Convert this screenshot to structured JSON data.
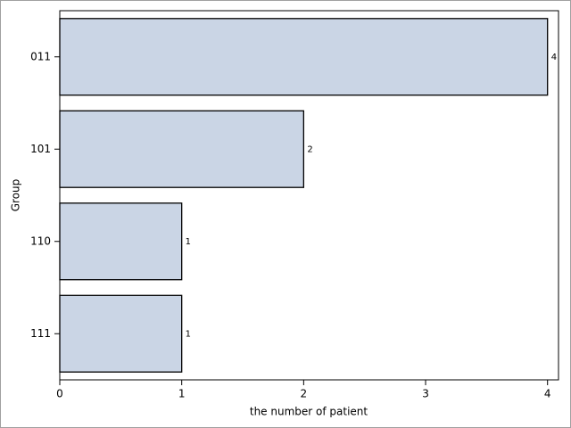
{
  "chart_data": {
    "type": "bar",
    "orientation": "horizontal",
    "categories": [
      "011",
      "101",
      "110",
      "111"
    ],
    "values": [
      4,
      2,
      1,
      1
    ],
    "color": "#cad5e5",
    "edge_color": "#000000",
    "xlabel": "the number of patient",
    "ylabel": "Group",
    "xlim": [
      0,
      4.09
    ],
    "xticks": [
      0,
      1,
      2,
      3,
      4
    ],
    "show_value_labels": true
  }
}
